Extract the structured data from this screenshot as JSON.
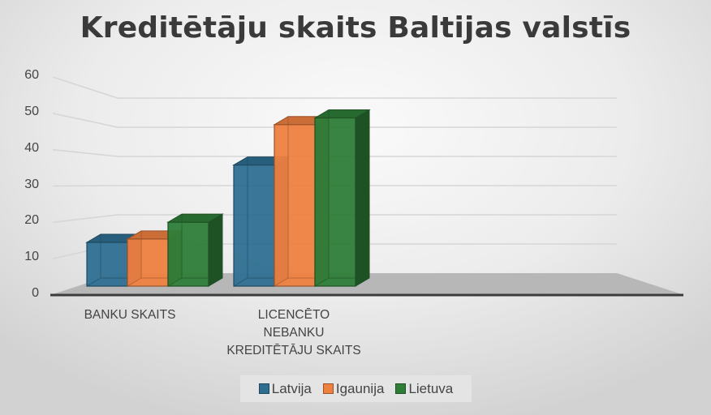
{
  "chart_data": {
    "type": "bar",
    "style": "3d-clustered-column",
    "title": "Kreditētāju skaits Baltijas valstīs",
    "xlabel": "",
    "ylabel": "",
    "ylim": [
      0,
      60
    ],
    "yticks": [
      "0",
      "10",
      "20",
      "30",
      "40",
      "50",
      "60"
    ],
    "grid": true,
    "legend_position": "bottom",
    "categories": [
      "BANKU SKAITS",
      "LICENCĒTO NEBANKU KREDITĒTĀJU SKAITS"
    ],
    "category_lines": [
      [
        "BANKU SKAITS"
      ],
      [
        "LICENCĒTO",
        "NEBANKU",
        "KREDITĒTĀJU SKAITS"
      ]
    ],
    "series": [
      {
        "name": "Latvija",
        "color": "#2e6f91",
        "values": [
          13,
          36
        ]
      },
      {
        "name": "Igaunija",
        "color": "#ee8040",
        "values": [
          14,
          48
        ]
      },
      {
        "name": "Lietuva",
        "color": "#2e7d38",
        "values": [
          19,
          50
        ]
      }
    ]
  }
}
